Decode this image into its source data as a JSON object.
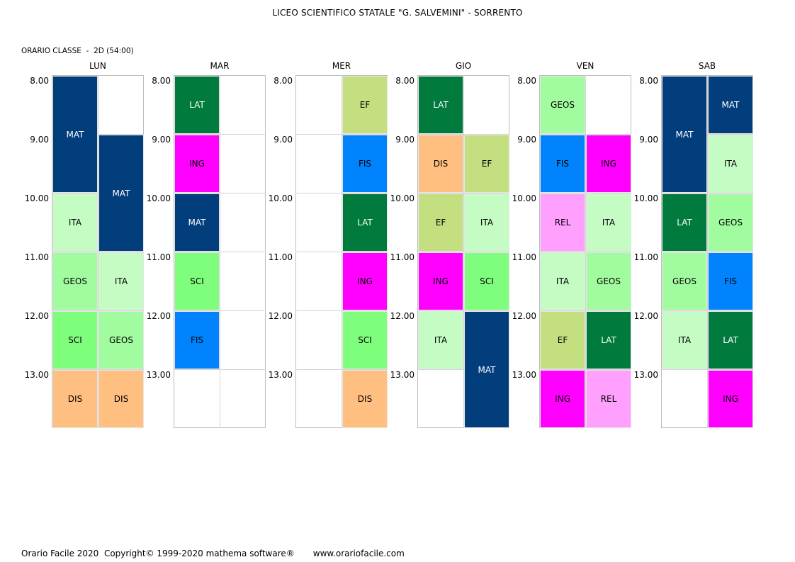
{
  "header": {
    "school": "LICEO SCIENTIFICO STATALE \"G. SALVEMINI\" - SORRENTO",
    "class_prefix": "ORARIO CLASSE",
    "class_sep": "-",
    "class_name": "2D",
    "class_hours": "(54:00)"
  },
  "hours": [
    "8.00",
    "9.00",
    "10.00",
    "11.00",
    "12.00",
    "13.00"
  ],
  "subjects": {
    "MAT": {
      "bg": "#033e7c",
      "fg": "#ffffff"
    },
    "LAT": {
      "bg": "#017a3e",
      "fg": "#ffffff"
    },
    "ITA": {
      "bg": "#c4fcc4",
      "fg": "#000000"
    },
    "GEOS": {
      "bg": "#a1fb9f",
      "fg": "#000000"
    },
    "SCI": {
      "bg": "#7ffd7d",
      "fg": "#000000"
    },
    "DIS": {
      "bg": "#ffbf80",
      "fg": "#000000"
    },
    "ING": {
      "bg": "#ff00ff",
      "fg": "#000000"
    },
    "EF": {
      "bg": "#c3df80",
      "fg": "#000000"
    },
    "FIS": {
      "bg": "#0183fe",
      "fg": "#000000"
    },
    "REL": {
      "bg": "#ff9ffe",
      "fg": "#000000"
    }
  },
  "days": [
    {
      "name": "LUN",
      "lessons": [
        {
          "subject": "MAT",
          "col": 0,
          "start": 0,
          "span": 2
        },
        {
          "subject": "MAT",
          "col": 1,
          "start": 1,
          "span": 2
        },
        {
          "subject": "ITA",
          "col": 0,
          "start": 2,
          "span": 1
        },
        {
          "subject": "GEOS",
          "col": 0,
          "start": 3,
          "span": 1
        },
        {
          "subject": "ITA",
          "col": 1,
          "start": 3,
          "span": 1
        },
        {
          "subject": "SCI",
          "col": 0,
          "start": 4,
          "span": 1
        },
        {
          "subject": "GEOS",
          "col": 1,
          "start": 4,
          "span": 1
        },
        {
          "subject": "DIS",
          "col": 0,
          "start": 5,
          "span": 1
        },
        {
          "subject": "DIS",
          "col": 1,
          "start": 5,
          "span": 1
        }
      ]
    },
    {
      "name": "MAR",
      "lessons": [
        {
          "subject": "LAT",
          "col": 0,
          "start": 0,
          "span": 1
        },
        {
          "subject": "ING",
          "col": 0,
          "start": 1,
          "span": 1
        },
        {
          "subject": "MAT",
          "col": 0,
          "start": 2,
          "span": 1
        },
        {
          "subject": "SCI",
          "col": 0,
          "start": 3,
          "span": 1
        },
        {
          "subject": "FIS",
          "col": 0,
          "start": 4,
          "span": 1
        }
      ]
    },
    {
      "name": "MER",
      "lessons": [
        {
          "subject": "EF",
          "col": 1,
          "start": 0,
          "span": 1
        },
        {
          "subject": "FIS",
          "col": 1,
          "start": 1,
          "span": 1
        },
        {
          "subject": "LAT",
          "col": 1,
          "start": 2,
          "span": 1
        },
        {
          "subject": "ING",
          "col": 1,
          "start": 3,
          "span": 1
        },
        {
          "subject": "SCI",
          "col": 1,
          "start": 4,
          "span": 1
        },
        {
          "subject": "DIS",
          "col": 1,
          "start": 5,
          "span": 1
        }
      ]
    },
    {
      "name": "GIO",
      "lessons": [
        {
          "subject": "LAT",
          "col": 0,
          "start": 0,
          "span": 1
        },
        {
          "subject": "DIS",
          "col": 0,
          "start": 1,
          "span": 1
        },
        {
          "subject": "EF",
          "col": 1,
          "start": 1,
          "span": 1
        },
        {
          "subject": "EF",
          "col": 0,
          "start": 2,
          "span": 1
        },
        {
          "subject": "ITA",
          "col": 1,
          "start": 2,
          "span": 1
        },
        {
          "subject": "ING",
          "col": 0,
          "start": 3,
          "span": 1
        },
        {
          "subject": "SCI",
          "col": 1,
          "start": 3,
          "span": 1
        },
        {
          "subject": "ITA",
          "col": 0,
          "start": 4,
          "span": 1
        },
        {
          "subject": "MAT",
          "col": 1,
          "start": 4,
          "span": 2
        }
      ]
    },
    {
      "name": "VEN",
      "lessons": [
        {
          "subject": "GEOS",
          "col": 0,
          "start": 0,
          "span": 1
        },
        {
          "subject": "FIS",
          "col": 0,
          "start": 1,
          "span": 1
        },
        {
          "subject": "ING",
          "col": 1,
          "start": 1,
          "span": 1
        },
        {
          "subject": "REL",
          "col": 0,
          "start": 2,
          "span": 1
        },
        {
          "subject": "ITA",
          "col": 1,
          "start": 2,
          "span": 1
        },
        {
          "subject": "ITA",
          "col": 0,
          "start": 3,
          "span": 1
        },
        {
          "subject": "GEOS",
          "col": 1,
          "start": 3,
          "span": 1
        },
        {
          "subject": "EF",
          "col": 0,
          "start": 4,
          "span": 1
        },
        {
          "subject": "LAT",
          "col": 1,
          "start": 4,
          "span": 1
        },
        {
          "subject": "ING",
          "col": 0,
          "start": 5,
          "span": 1
        },
        {
          "subject": "REL",
          "col": 1,
          "start": 5,
          "span": 1
        }
      ]
    },
    {
      "name": "SAB",
      "lessons": [
        {
          "subject": "MAT",
          "col": 0,
          "start": 0,
          "span": 2
        },
        {
          "subject": "MAT",
          "col": 1,
          "start": 0,
          "span": 1
        },
        {
          "subject": "ITA",
          "col": 1,
          "start": 1,
          "span": 1
        },
        {
          "subject": "LAT",
          "col": 0,
          "start": 2,
          "span": 1
        },
        {
          "subject": "GEOS",
          "col": 1,
          "start": 2,
          "span": 1
        },
        {
          "subject": "GEOS",
          "col": 0,
          "start": 3,
          "span": 1
        },
        {
          "subject": "FIS",
          "col": 1,
          "start": 3,
          "span": 1
        },
        {
          "subject": "ITA",
          "col": 0,
          "start": 4,
          "span": 1
        },
        {
          "subject": "LAT",
          "col": 1,
          "start": 4,
          "span": 1
        },
        {
          "subject": "ING",
          "col": 1,
          "start": 5,
          "span": 1
        }
      ]
    }
  ],
  "footer": {
    "copyright": "Orario Facile 2020  Copyright© 1999-2020 mathema software®",
    "website": "www.orariofacile.com"
  }
}
